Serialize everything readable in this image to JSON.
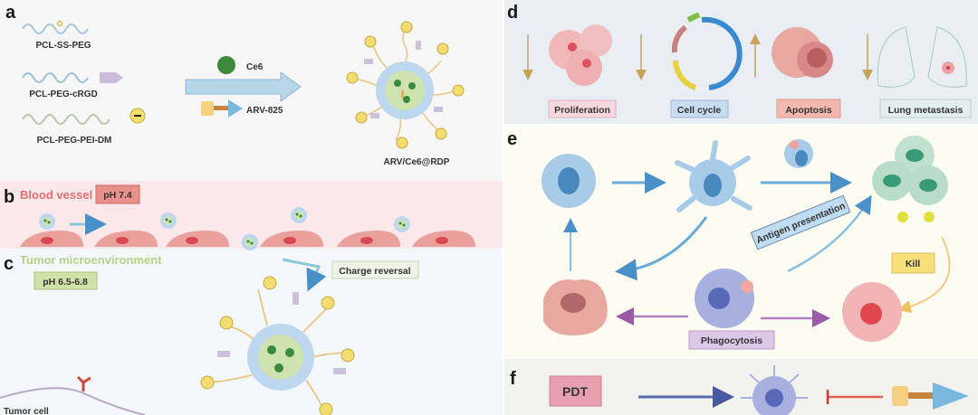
{
  "panel_a": {
    "letter": "a",
    "polymers": [
      "PCL-SS-PEG",
      "PCL-PEG-cRGD",
      "PCL-PEG-PEI-DM"
    ],
    "drug1": "Ce6",
    "drug2": "ARV-825",
    "product": "ARV/Ce6@RDP"
  },
  "panel_b": {
    "letter": "b",
    "title": "Blood vessel",
    "ph": "pH 7.4",
    "title_color": "#e07070"
  },
  "panel_c": {
    "letter": "c",
    "title": "Tumor microenvironment",
    "ph": "pH 6.5-6.8",
    "step": "Charge reversal",
    "cell": "Tumor cell",
    "title_color": "#b5d28a"
  },
  "panel_d": {
    "letter": "d",
    "items": [
      {
        "label": "Proliferation",
        "direction": "down"
      },
      {
        "label": "Cell cycle",
        "direction": "down"
      },
      {
        "label": "Apoptosis",
        "direction": "up"
      },
      {
        "label": "Lung metastasis",
        "direction": "down"
      }
    ]
  },
  "panel_e": {
    "letter": "e",
    "antigen": "Antigen presentation",
    "kill": "Kill",
    "phago": "Phagocytosis"
  },
  "panel_f": {
    "letter": "f",
    "pdt": "PDT"
  }
}
